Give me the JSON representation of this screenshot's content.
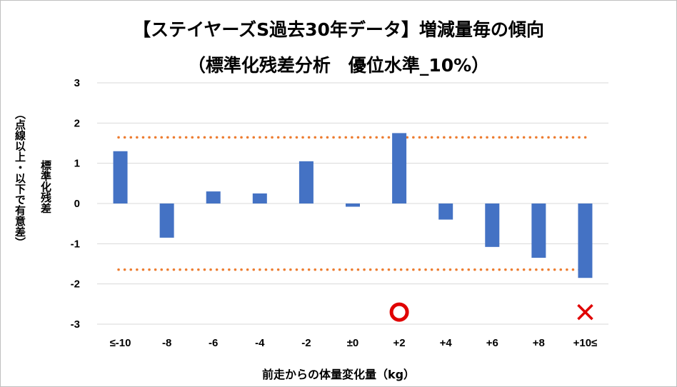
{
  "chart_data": {
    "type": "bar",
    "title": "【ステイヤーズS過去30年データ】増減量毎の傾向",
    "subtitle": "（標準化残差分析　優位水準_10%）",
    "xlabel": "前走からの体量変化量（kg）",
    "ylabel": "標準化残差",
    "ylabel_note": "（点線以上・以下で有意差）",
    "categories": [
      "≤-10",
      "-8",
      "-6",
      "-4",
      "-2",
      "±0",
      "+2",
      "+4",
      "+6",
      "+8",
      "+10≤"
    ],
    "values": [
      1.3,
      -0.85,
      0.3,
      0.25,
      1.05,
      -0.08,
      1.75,
      -0.4,
      -1.08,
      -1.35,
      -1.85
    ],
    "ylim": [
      -3,
      3
    ],
    "yticks": [
      "3",
      "2",
      "1",
      "0",
      "-1",
      "-2",
      "-3"
    ],
    "threshold_lines": [
      1.645,
      -1.645
    ],
    "markers": [
      {
        "category": "+2",
        "symbol": "○",
        "y": -2.7
      },
      {
        "category": "+10≤",
        "symbol": "×",
        "y": -2.7
      }
    ],
    "grid": true,
    "colors": {
      "bar": "#4472c4",
      "threshold": "#ed7d31",
      "grid": "#d9d9d9",
      "circle": "#e00000",
      "cross": "#e00000"
    }
  }
}
